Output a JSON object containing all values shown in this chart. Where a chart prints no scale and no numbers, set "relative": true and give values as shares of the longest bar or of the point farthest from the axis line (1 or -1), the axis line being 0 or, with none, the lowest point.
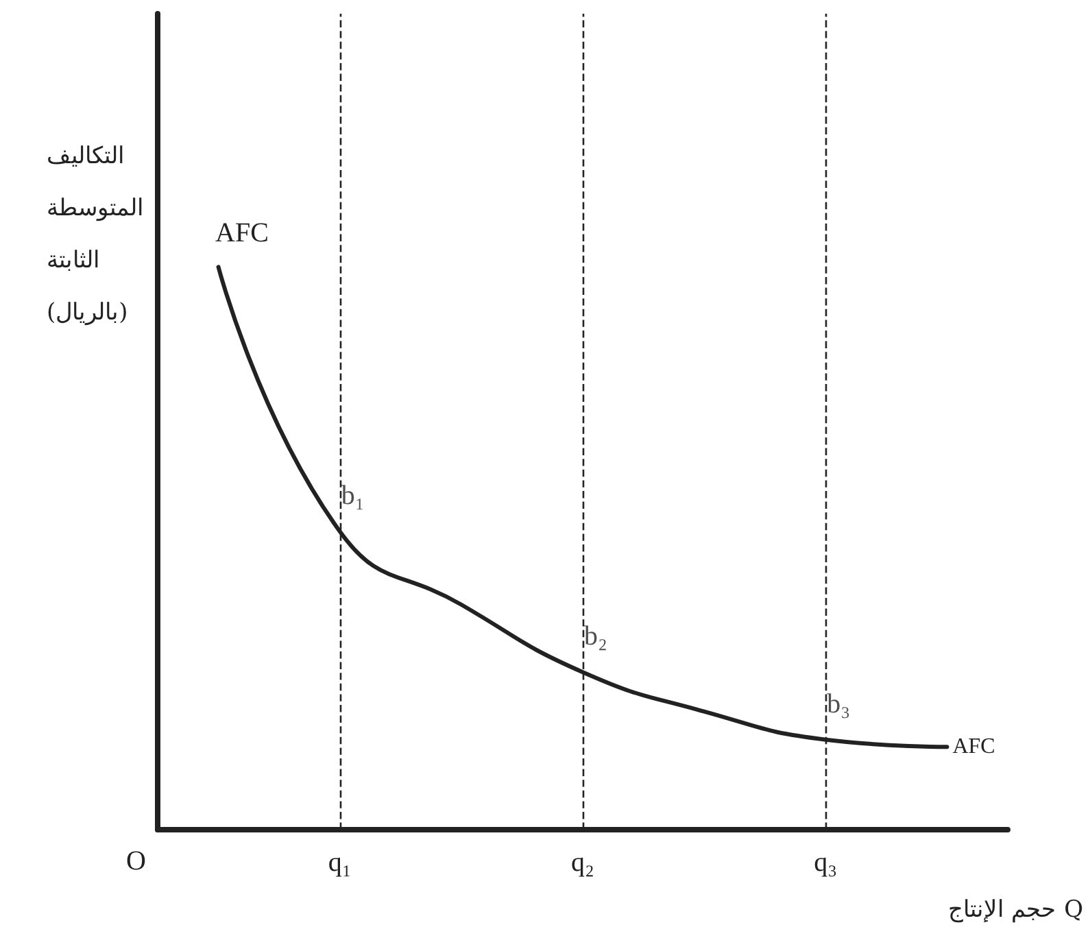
{
  "chart_data": {
    "type": "line",
    "relative": true,
    "xlabel": "حجم الإنتاج Q",
    "ylabel": "التكاليف المتوسطة الثابتة (بالريال)",
    "categories": [
      null,
      "q₁",
      null,
      "q₂",
      null,
      "q₃",
      null
    ],
    "series": [
      {
        "name": "AFC",
        "color": "#222222",
        "values": [
          1,
          0.53,
          0.4,
          0.28,
          0.21,
          0.16,
          0.147
        ]
      }
    ],
    "ref_lines": [
      {
        "axis": "x",
        "value": "q₁",
        "line_style": "dashed",
        "color": "#222222"
      },
      {
        "axis": "x",
        "value": "q₂",
        "line_style": "dashed",
        "color": "#222222"
      },
      {
        "axis": "x",
        "value": "q₃",
        "line_style": "dashed",
        "color": "#222222"
      }
    ],
    "annotations": [
      {
        "text": "b₁",
        "x": "q₁",
        "y": 0.53
      },
      {
        "text": "b₂",
        "x": "q₂",
        "y": 0.28
      },
      {
        "text": "b₃",
        "x": "q₃",
        "y": 0.16
      },
      "AFC",
      "O"
    ],
    "marker": "none",
    "line_style": "solid",
    "grid": false,
    "legend": false
  }
}
